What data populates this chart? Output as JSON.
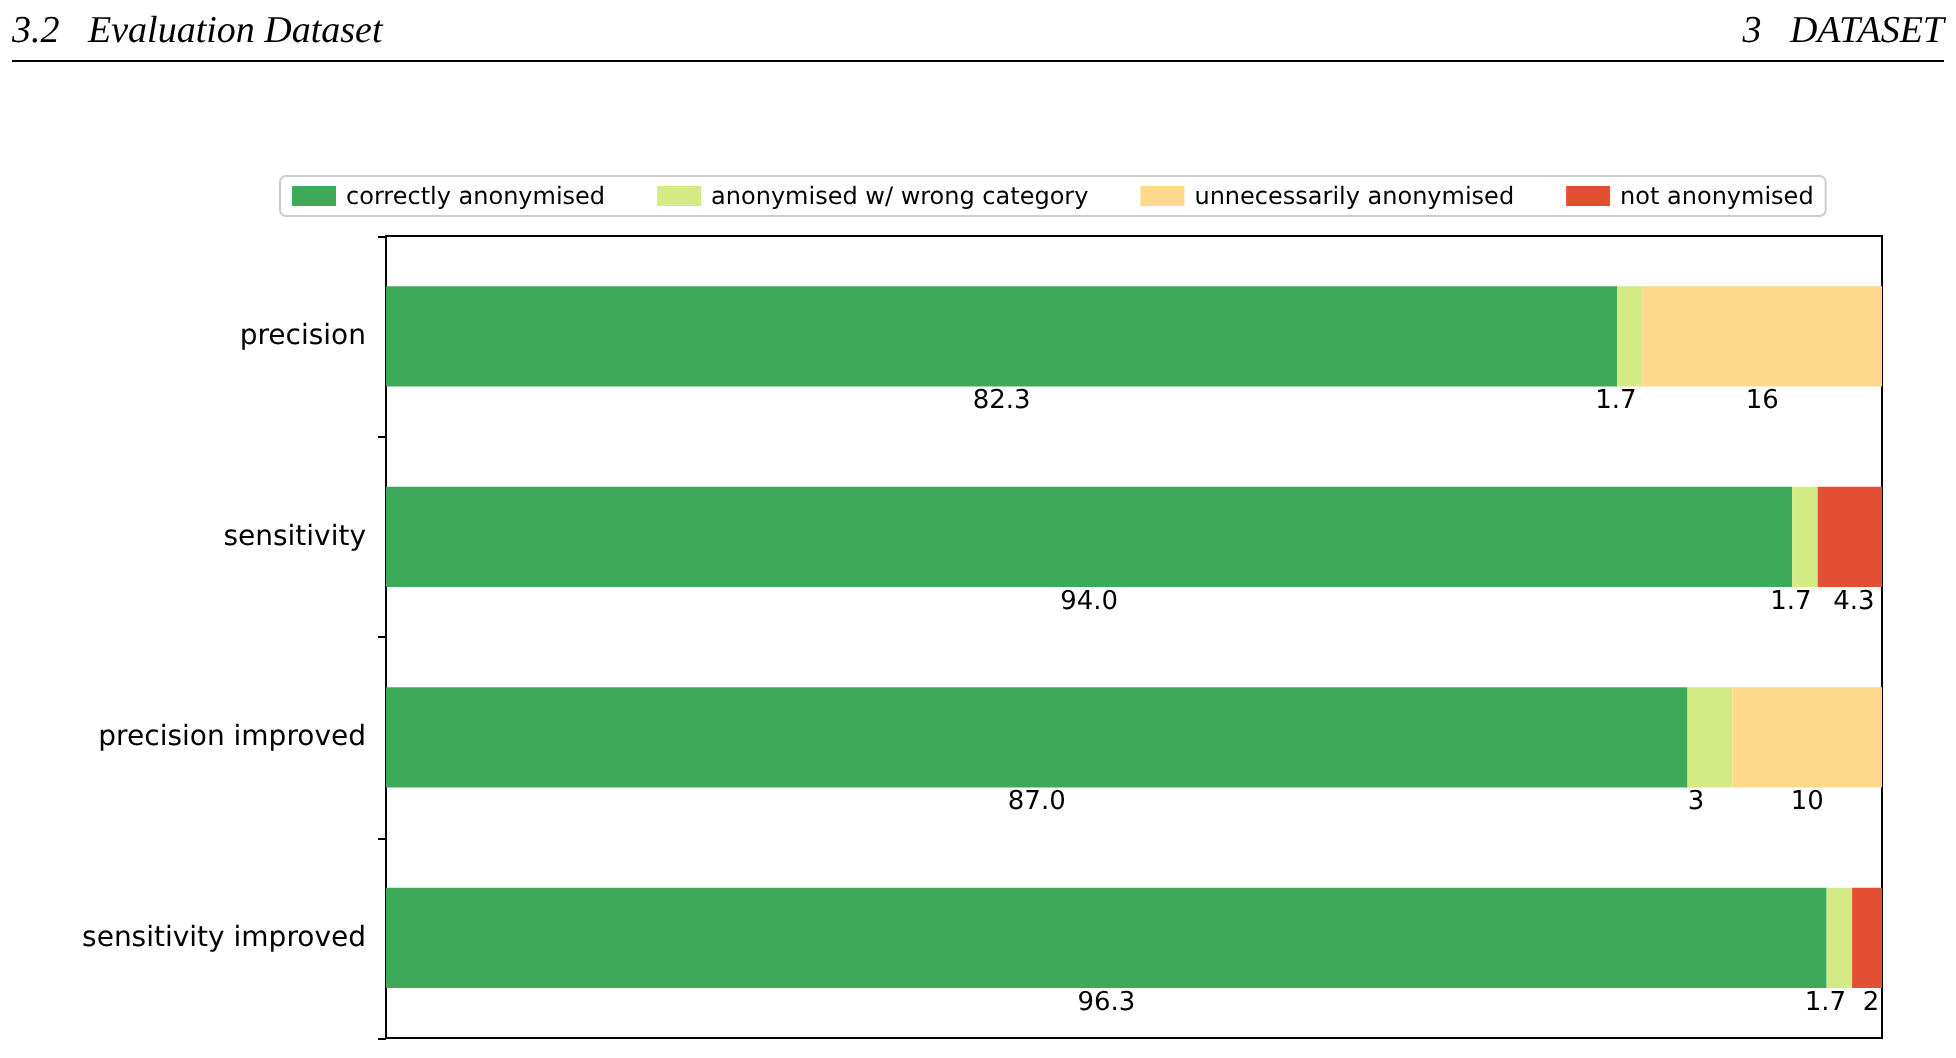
{
  "chart_data": {
    "type": "bar",
    "orientation": "horizontal",
    "stacked": true,
    "legend": "top",
    "tick_labels": "y",
    "annotations": [
      "3.2   Evaluation Dataset",
      "3   DATASET"
    ],
    "categories": [
      "precision",
      "sensitivity",
      "precision improved",
      "sensitivity improved"
    ],
    "series": [
      {
        "name": "correctly anonymised",
        "color": "#3fa95a",
        "values": [
          82.3,
          94.0,
          87.0,
          96.3
        ],
        "value_labels": [
          "82.3",
          "94.0",
          "87.0",
          "96.3"
        ]
      },
      {
        "name": "anonymised w/ wrong category",
        "color": "#d4ea85",
        "values": [
          1.7,
          1.7,
          3,
          1.7
        ],
        "value_labels": [
          "1.7",
          "1.7",
          "3",
          "1.7"
        ]
      },
      {
        "name": "unnecessarily anonymised",
        "color": "#fed98b",
        "values": [
          16,
          0,
          10,
          0
        ],
        "value_labels": [
          "16",
          null,
          "10",
          null
        ]
      },
      {
        "name": "not anonymised",
        "color": "#e34f33",
        "values": [
          0,
          4.3,
          0,
          2
        ],
        "value_labels": [
          null,
          "4.3",
          null,
          "2"
        ]
      }
    ]
  }
}
